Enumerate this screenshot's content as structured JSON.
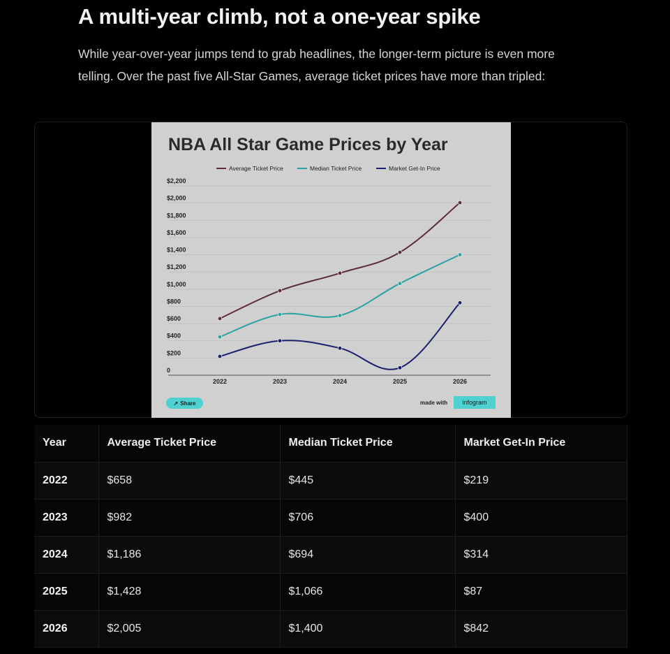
{
  "article": {
    "heading": "A multi-year climb, not a one-year spike",
    "intro": "While year-over-year jumps tend to grab headlines, the longer-term picture is even more telling. Over the past five All-Star Games, average ticket prices have more than tripled:"
  },
  "chart_data": {
    "type": "line",
    "title": "NBA All Star Game Prices by Year",
    "x": [
      "2022",
      "2023",
      "2024",
      "2025",
      "2026"
    ],
    "y_ticks": [
      "0",
      "$200",
      "$400",
      "$600",
      "$800",
      "$1,000",
      "$1,200",
      "$1,400",
      "$1,600",
      "$1,800",
      "$2,000",
      "$2,200"
    ],
    "ylim": [
      0,
      2200
    ],
    "grid": true,
    "legend_position": "top-center",
    "series": [
      {
        "name": "Average Ticket Price",
        "color": "#5a2d38",
        "values": [
          658,
          982,
          1186,
          1428,
          2005
        ]
      },
      {
        "name": "Median Ticket Price",
        "color": "#2aa3a0",
        "values": [
          445,
          706,
          694,
          1066,
          1400
        ]
      },
      {
        "name": "Market Get-In Price",
        "color": "#1a1f6e",
        "values": [
          219,
          400,
          314,
          87,
          842
        ]
      }
    ]
  },
  "embed": {
    "share_label": "Share",
    "made_with_label": "made with",
    "brand_label": "infogram"
  },
  "table": {
    "headers": [
      "Year",
      "Average Ticket Price",
      "Median Ticket Price",
      "Market Get-In Price"
    ],
    "rows": [
      [
        "2022",
        "$658",
        "$445",
        "$219"
      ],
      [
        "2023",
        "$982",
        "$706",
        "$400"
      ],
      [
        "2024",
        "$1,186",
        "$694",
        "$314"
      ],
      [
        "2025",
        "$1,428",
        "$1,066",
        "$87"
      ],
      [
        "2026",
        "$2,005",
        "$1,400",
        "$842"
      ]
    ]
  }
}
